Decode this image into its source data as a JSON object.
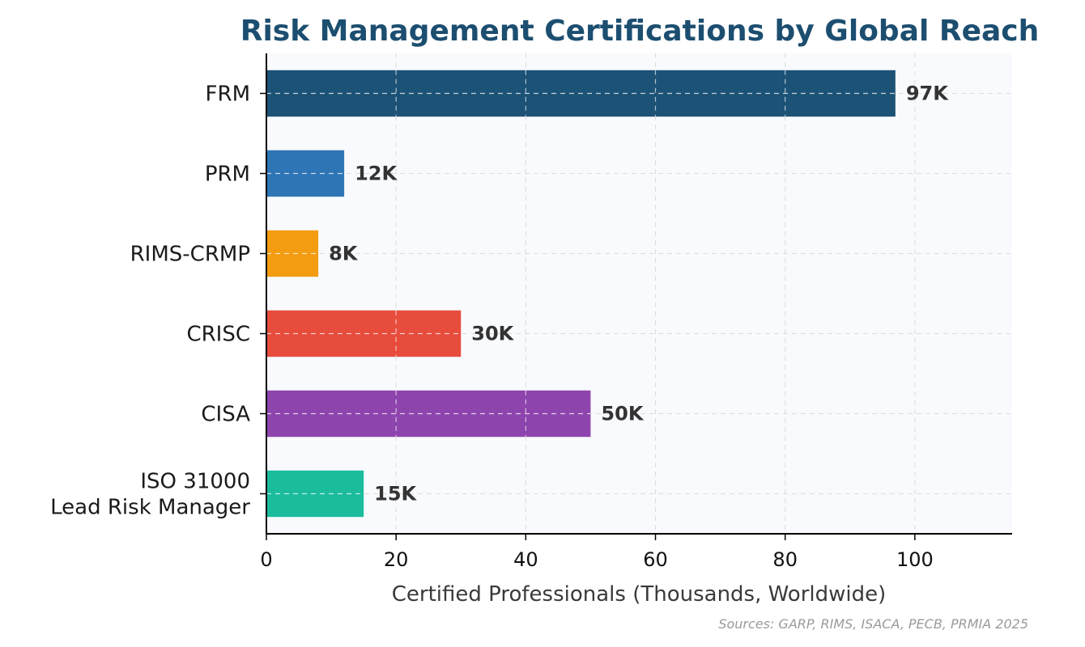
{
  "chart_data": {
    "type": "bar",
    "orientation": "horizontal",
    "title": "Risk Management Certifications by Global Reach",
    "xlabel": "Certified Professionals (Thousands, Worldwide)",
    "ylabel": "",
    "categories": [
      [
        "FRM"
      ],
      [
        "PRM"
      ],
      [
        "RIMS-CRMP"
      ],
      [
        "CRISC"
      ],
      [
        "CISA"
      ],
      [
        "ISO 31000",
        "Lead Risk Manager"
      ]
    ],
    "values": [
      97,
      12,
      8,
      30,
      50,
      15
    ],
    "value_labels": [
      "97K",
      "12K",
      "8K",
      "30K",
      "50K",
      "15K"
    ],
    "colors": [
      "#1c5276",
      "#2e75b6",
      "#f39c12",
      "#e74c3c",
      "#8e44ad",
      "#1abc9c"
    ],
    "xlim": [
      0,
      115
    ],
    "xticks": [
      0,
      20,
      40,
      60,
      80,
      100
    ],
    "grid": true,
    "source": "Sources: GARP, RIMS, ISACA, PECB, PRMIA 2025"
  }
}
